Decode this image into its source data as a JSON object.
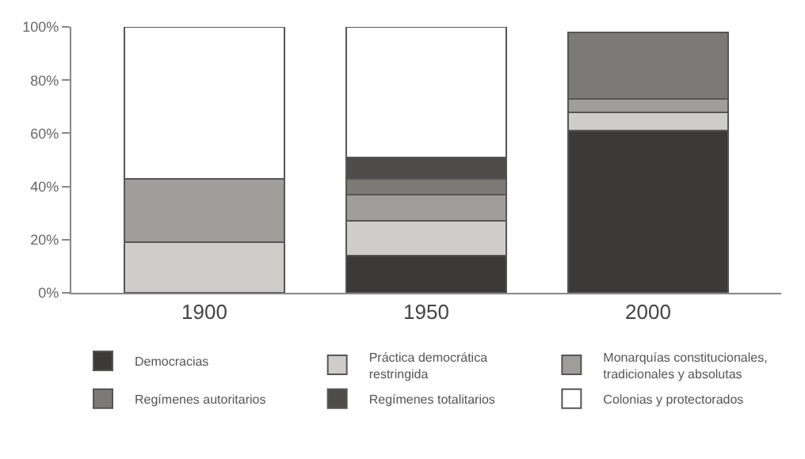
{
  "chart_data": {
    "type": "bar",
    "stacked": true,
    "categories": [
      "1900",
      "1950",
      "2000"
    ],
    "series": [
      {
        "name": "Democracias",
        "color": "#3c3a38",
        "values": [
          0,
          14,
          61
        ]
      },
      {
        "name": "Práctica democrática restringida",
        "color": "#cfcdca",
        "values": [
          19,
          13,
          7
        ]
      },
      {
        "name": "Monarquías constitucionales, tradicionales y absolutas",
        "color": "#a09e9b",
        "values": [
          24,
          10,
          5
        ]
      },
      {
        "name": "Regímenes autoritarios",
        "color": "#7c7a77",
        "values": [
          0,
          6,
          25
        ]
      },
      {
        "name": "Regímenes totalitarios",
        "color": "#4e4c4a",
        "values": [
          0,
          8,
          0
        ]
      },
      {
        "name": "Colonias y protectorados",
        "color": "#ffffff",
        "values": [
          57,
          49,
          0
        ]
      }
    ],
    "ylim": [
      0,
      100
    ],
    "yticks": [
      {
        "value": 0,
        "label": "0%"
      },
      {
        "value": 20,
        "label": "20%"
      },
      {
        "value": 40,
        "label": "40%"
      },
      {
        "value": 60,
        "label": "60%"
      },
      {
        "value": 80,
        "label": "80%"
      },
      {
        "value": 100,
        "label": "100%"
      }
    ],
    "legend": "bottom"
  }
}
